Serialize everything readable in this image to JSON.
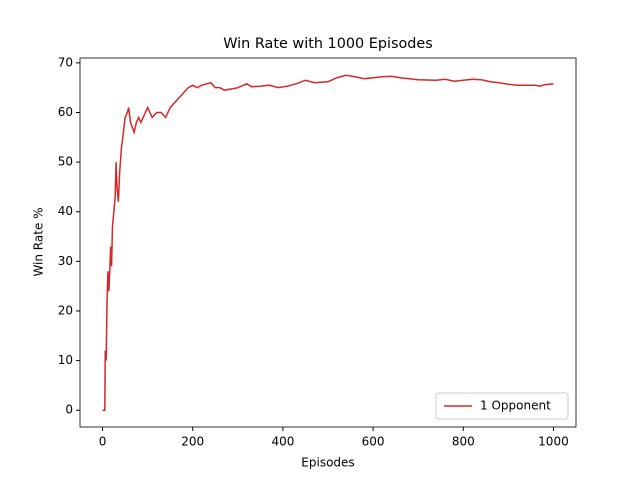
{
  "chart_data": {
    "type": "line",
    "title": "Win Rate with 1000 Episodes",
    "x_label": "Episodes",
    "y_label": "Win Rate %",
    "x": [
      0,
      5,
      6,
      8,
      10,
      12,
      14,
      16,
      18,
      20,
      22,
      25,
      28,
      30,
      32,
      35,
      38,
      42,
      45,
      50,
      55,
      58,
      62,
      66,
      70,
      75,
      80,
      85,
      90,
      95,
      100,
      105,
      110,
      120,
      130,
      140,
      150,
      160,
      170,
      180,
      190,
      200,
      210,
      220,
      240,
      250,
      260,
      270,
      290,
      300,
      320,
      330,
      350,
      370,
      390,
      410,
      430,
      450,
      470,
      500,
      520,
      540,
      560,
      580,
      600,
      620,
      640,
      660,
      700,
      740,
      760,
      780,
      800,
      820,
      840,
      860,
      880,
      900,
      920,
      940,
      960,
      970,
      980,
      1000
    ],
    "series": [
      {
        "name": "1 Opponent",
        "color": "#d62728",
        "values": [
          0,
          0,
          12,
          10,
          22,
          28,
          24,
          28,
          33,
          29,
          37,
          40,
          43,
          50,
          45,
          42,
          48,
          53,
          55,
          59,
          60,
          61,
          58,
          57,
          56,
          58,
          59,
          58,
          59,
          60,
          61,
          60,
          59,
          60,
          60,
          59,
          61,
          62,
          63,
          64,
          65,
          65.5,
          65,
          65.5,
          66,
          65,
          65,
          64.5,
          64.8,
          65,
          65.8,
          65.2,
          65.3,
          65.5,
          65,
          65.3,
          65.8,
          66.5,
          66,
          66.2,
          67,
          67.5,
          67.2,
          66.8,
          67,
          67.2,
          67.3,
          67,
          66.6,
          66.5,
          66.7,
          66.3,
          66.5,
          66.7,
          66.6,
          66.2,
          66,
          65.7,
          65.5,
          65.5,
          65.5,
          65.3,
          65.6,
          65.8
        ]
      }
    ],
    "xlim": [
      -50,
      1050
    ],
    "ylim": [
      -3.38,
      70.98
    ],
    "xticks": [
      0,
      200,
      400,
      600,
      800,
      1000
    ],
    "yticks": [
      0,
      10,
      20,
      30,
      40,
      50,
      60,
      70
    ],
    "legend": "lower right"
  }
}
